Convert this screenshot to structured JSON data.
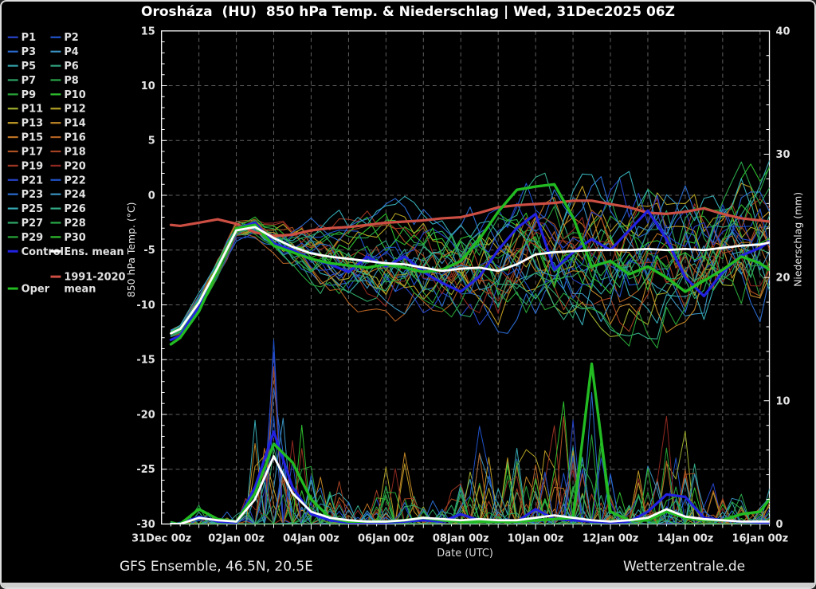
{
  "title": "Orosháza  (HU)  850 hPa Temp. & Niederschlag | Wed, 31Dec2025 06Z",
  "footer": {
    "left": "GFS Ensemble, 46.5N, 20.5E",
    "right": "Wetterzentrale.de"
  },
  "legend": {
    "col1": [
      {
        "label": "P1",
        "color": "#2743c9"
      },
      {
        "label": "P3",
        "color": "#2a6bd1"
      },
      {
        "label": "P5",
        "color": "#36abb5"
      },
      {
        "label": "P7",
        "color": "#2fa868"
      },
      {
        "label": "P9",
        "color": "#27a337"
      },
      {
        "label": "P11",
        "color": "#a0af2e"
      },
      {
        "label": "P13",
        "color": "#c09b22"
      },
      {
        "label": "P15",
        "color": "#bd7224"
      },
      {
        "label": "P17",
        "color": "#ad5122"
      },
      {
        "label": "P19",
        "color": "#9c3522"
      },
      {
        "label": "P21",
        "color": "#2743c9"
      },
      {
        "label": "P23",
        "color": "#2a6bd1"
      },
      {
        "label": "P25",
        "color": "#36abb5"
      },
      {
        "label": "P27",
        "color": "#2fa868"
      },
      {
        "label": "P29",
        "color": "#27a337"
      },
      {
        "label": "Control",
        "color": "#2222e0",
        "thick": true
      }
    ],
    "col2": [
      {
        "label": "P2",
        "color": "#1f52c9"
      },
      {
        "label": "P4",
        "color": "#3a93c2"
      },
      {
        "label": "P6",
        "color": "#34ad89"
      },
      {
        "label": "P8",
        "color": "#2aaa4a"
      },
      {
        "label": "P10",
        "color": "#2ec02e"
      },
      {
        "label": "P12",
        "color": "#b5a426"
      },
      {
        "label": "P14",
        "color": "#c08526"
      },
      {
        "label": "P16",
        "color": "#b26022"
      },
      {
        "label": "P18",
        "color": "#a44324"
      },
      {
        "label": "P20",
        "color": "#8f2820"
      },
      {
        "label": "P22",
        "color": "#1f52c9"
      },
      {
        "label": "P24",
        "color": "#3a93c2"
      },
      {
        "label": "P26",
        "color": "#34ad89"
      },
      {
        "label": "P28",
        "color": "#2aaa4a"
      },
      {
        "label": "P30",
        "color": "#2ec02e"
      },
      {
        "label": "Ens. mean",
        "color": "#ffffff",
        "thick": true
      }
    ],
    "oper": {
      "label": "Oper",
      "color": "#22bb22",
      "thick": true
    },
    "climate": {
      "label_lines": [
        "1991-2020",
        "mean"
      ],
      "color": "#cd4f44",
      "thick": true
    }
  },
  "chart_data": {
    "type": "line",
    "title": "Orosháza  (HU)  850 hPa Temp. & Niederschlag | Wed, 31Dec2025 06Z",
    "x_label": "Date (UTC)",
    "y_left": {
      "label": "850 hPa Temp. (°C)",
      "min": -30,
      "max": 15,
      "ticks": [
        15,
        10,
        5,
        0,
        -5,
        -10,
        -15,
        -20,
        -25,
        -30
      ]
    },
    "y_right": {
      "label": "Niederschlag (mm)",
      "min": 0,
      "max": 40,
      "ticks": [
        40,
        30,
        20,
        10,
        0
      ]
    },
    "x_range_days": [
      0,
      16.25
    ],
    "grid": {
      "vertical_every_days": 1,
      "horizontal_every_degC": 5,
      "style": "dashed-gray"
    },
    "x_ticks": [
      {
        "t": 0,
        "label": "31Dec 00z"
      },
      {
        "t": 2,
        "label": "02Jan 00z"
      },
      {
        "t": 4,
        "label": "04Jan 00z"
      },
      {
        "t": 6,
        "label": "06Jan 00z"
      },
      {
        "t": 8,
        "label": "08Jan 00z"
      },
      {
        "t": 10,
        "label": "10Jan 00z"
      },
      {
        "t": 12,
        "label": "12Jan 00z"
      },
      {
        "t": 14,
        "label": "14Jan 00z"
      },
      {
        "t": 16,
        "label": "16Jan 00z"
      }
    ],
    "t_days": [
      0.25,
      0.5,
      1,
      1.5,
      2,
      2.5,
      3,
      3.5,
      4,
      4.5,
      5,
      5.5,
      6,
      6.5,
      7,
      7.5,
      8,
      8.5,
      9,
      9.5,
      10,
      10.5,
      11,
      11.5,
      12,
      12.5,
      13,
      13.5,
      14,
      14.5,
      15,
      15.5,
      16,
      16.25
    ],
    "series": {
      "ens_mean": {
        "label": "Ens. mean",
        "color": "#ffffff",
        "temp": [
          -12.6,
          -12.2,
          -9.8,
          -6.6,
          -3.2,
          -2.9,
          -3.9,
          -4.7,
          -5.3,
          -5.6,
          -5.8,
          -6.0,
          -6.2,
          -6.3,
          -6.6,
          -6.9,
          -6.7,
          -6.6,
          -6.9,
          -6.3,
          -5.4,
          -5.2,
          -5.1,
          -5.0,
          -5.0,
          -5.0,
          -4.9,
          -5.0,
          -4.9,
          -5.0,
          -4.8,
          -4.6,
          -4.5,
          -4.3
        ],
        "precip": [
          0,
          0,
          0.5,
          0.3,
          0.2,
          2.0,
          5.5,
          2.5,
          1.0,
          0.5,
          0.3,
          0.2,
          0.2,
          0.3,
          0.5,
          0.4,
          0.3,
          0.4,
          0.3,
          0.3,
          0.5,
          0.7,
          0.5,
          0.3,
          0.2,
          0.3,
          0.5,
          1.2,
          0.6,
          0.4,
          0.3,
          0.2,
          0.2,
          0.2
        ]
      },
      "control": {
        "label": "Control",
        "color": "#2222e0",
        "temp": [
          -13.2,
          -12.8,
          -10.2,
          -6.9,
          -3.0,
          -2.5,
          -4.4,
          -5.0,
          -5.8,
          -6.3,
          -7.0,
          -5.6,
          -6.5,
          -5.6,
          -7.0,
          -8.0,
          -8.8,
          -7.4,
          -5.0,
          -3.0,
          -1.7,
          -6.8,
          -5.2,
          -4.0,
          -5.0,
          -3.2,
          -1.4,
          -4.0,
          -7.5,
          -9.2,
          -7.0,
          -5.5,
          -4.8,
          -4.2
        ],
        "precip": [
          0,
          0,
          0.6,
          0.2,
          0.1,
          3.0,
          7.5,
          3.0,
          0.8,
          0.3,
          0.1,
          0.1,
          0.1,
          0.2,
          0.3,
          0.2,
          0.8,
          0.3,
          0.2,
          0.2,
          1.2,
          0.4,
          0.3,
          0.2,
          0.1,
          0.2,
          1.0,
          2.4,
          2.2,
          0.5,
          0.3,
          0.2,
          0.1,
          0.1
        ]
      },
      "oper": {
        "label": "Oper",
        "color": "#22bb22",
        "temp": [
          -13.6,
          -13.0,
          -10.6,
          -6.9,
          -3.0,
          -2.7,
          -4.6,
          -5.2,
          -5.8,
          -6.2,
          -6.4,
          -6.6,
          -6.3,
          -6.6,
          -7.0,
          -6.8,
          -6.0,
          -4.0,
          -1.5,
          0.5,
          0.8,
          1.0,
          -2.0,
          -6.5,
          -6.0,
          -7.2,
          -6.5,
          -7.5,
          -8.8,
          -7.8,
          -6.8,
          -5.6,
          -6.2,
          -6.8
        ],
        "precip": [
          0,
          0,
          1.2,
          0.4,
          0.2,
          2.5,
          6.5,
          5.0,
          2.0,
          0.5,
          0.2,
          0.2,
          0.2,
          0.3,
          0.5,
          0.3,
          0.2,
          0.2,
          0.2,
          0.2,
          0.3,
          0.4,
          0.5,
          13.0,
          1.0,
          0.3,
          0.3,
          1.0,
          0.5,
          0.3,
          0.3,
          0.8,
          1.0,
          2.0
        ]
      },
      "climate_mean": {
        "label": "1991-2020 mean",
        "color": "#cd4f44",
        "temp": [
          -2.7,
          -2.8,
          -2.5,
          -2.2,
          -2.6,
          -3.4,
          -3.7,
          -3.6,
          -3.2,
          -3.0,
          -2.9,
          -2.7,
          -2.5,
          -2.4,
          -2.3,
          -2.1,
          -2.0,
          -1.6,
          -1.1,
          -0.9,
          -0.8,
          -0.7,
          -0.5,
          -0.5,
          -0.8,
          -1.1,
          -1.6,
          -1.7,
          -1.5,
          -1.2,
          -1.7,
          -2.1,
          -2.3,
          -2.4
        ]
      }
    },
    "members": [
      {
        "name": "P1",
        "color": "#2743c9"
      },
      {
        "name": "P2",
        "color": "#1f52c9"
      },
      {
        "name": "P3",
        "color": "#2a6bd1"
      },
      {
        "name": "P4",
        "color": "#3a93c2"
      },
      {
        "name": "P5",
        "color": "#36abb5"
      },
      {
        "name": "P6",
        "color": "#34ad89"
      },
      {
        "name": "P7",
        "color": "#2fa868"
      },
      {
        "name": "P8",
        "color": "#2aaa4a"
      },
      {
        "name": "P9",
        "color": "#27a337"
      },
      {
        "name": "P10",
        "color": "#2ec02e"
      },
      {
        "name": "P11",
        "color": "#a0af2e"
      },
      {
        "name": "P12",
        "color": "#b5a426"
      },
      {
        "name": "P13",
        "color": "#c09b22"
      },
      {
        "name": "P14",
        "color": "#c08526"
      },
      {
        "name": "P15",
        "color": "#bd7224"
      },
      {
        "name": "P16",
        "color": "#b26022"
      },
      {
        "name": "P17",
        "color": "#ad5122"
      },
      {
        "name": "P18",
        "color": "#a44324"
      },
      {
        "name": "P19",
        "color": "#9c3522"
      },
      {
        "name": "P20",
        "color": "#8f2820"
      },
      {
        "name": "P21",
        "color": "#2743c9"
      },
      {
        "name": "P22",
        "color": "#1f52c9"
      },
      {
        "name": "P23",
        "color": "#2a6bd1"
      },
      {
        "name": "P24",
        "color": "#3a93c2"
      },
      {
        "name": "P25",
        "color": "#36abb5"
      },
      {
        "name": "P26",
        "color": "#34ad89"
      },
      {
        "name": "P27",
        "color": "#2fa868"
      },
      {
        "name": "P28",
        "color": "#2aaa4a"
      },
      {
        "name": "P29",
        "color": "#27a337"
      },
      {
        "name": "P30",
        "color": "#2ec02e"
      }
    ],
    "member_generation": {
      "approx_temp_spread_degC": [
        0.4,
        0.4,
        0.6,
        0.8,
        0.8,
        1.0,
        1.5,
        2.0,
        2.5,
        2.8,
        3.0,
        3.2,
        3.5,
        3.8,
        4.0,
        4.2,
        4.5,
        4.8,
        5.0,
        5.2,
        5.5,
        5.5,
        5.5,
        5.8,
        5.8,
        6.0,
        6.0,
        6.0,
        6.0,
        6.0,
        6.0,
        6.0,
        6.0,
        6.0
      ],
      "approx_precip_envelope_mm": [
        0.3,
        0.3,
        2,
        1.2,
        0.8,
        10,
        18,
        13,
        9,
        5,
        2,
        2,
        6,
        6,
        3,
        2,
        7,
        14,
        4,
        10,
        8,
        14,
        9,
        14,
        6,
        4,
        6,
        14,
        9,
        5,
        3,
        3,
        3,
        4
      ]
    }
  }
}
